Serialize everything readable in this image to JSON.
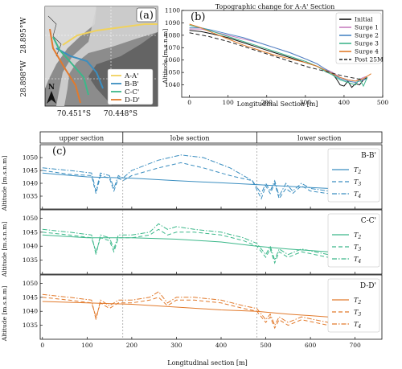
{
  "colors": {
    "section_aa": "#f0d25e",
    "section_bb": "#3b8ec0",
    "section_cc": "#3cb88a",
    "section_dd": "#e27a2c",
    "initial": "#111111",
    "surge1": "#c77fc0",
    "surge2": "#4a86c5",
    "surge3": "#3fb58c",
    "surge4": "#e07b2a",
    "post25m": "#222222"
  },
  "map_panel": {
    "label": "(a)",
    "lat_labels": [
      "28.895°W",
      "28.898°W"
    ],
    "lon_labels": [
      "70.451°S",
      "70.448°S"
    ],
    "north_label": "N",
    "legend": [
      "A-A'",
      "B-B'",
      "C-C'",
      "D-D'"
    ]
  },
  "chart_data": [
    {
      "id": "b",
      "type": "line",
      "panel_label": "(b)",
      "title": "Topographic change for A-A' Section",
      "xlabel": "Longitudinal Section [m]",
      "ylabel": "Altitude [m.s.n.m]",
      "xlim": [
        -20,
        500
      ],
      "ylim": [
        1030,
        1100
      ],
      "xticks": [
        0,
        100,
        200,
        300,
        400,
        500
      ],
      "yticks": [
        1040,
        1050,
        1060,
        1070,
        1080,
        1090,
        1100
      ],
      "legend_position": "top-right",
      "series": [
        {
          "name": "Initial",
          "style": "solid",
          "x": [
            0,
            30,
            60,
            100,
            140,
            180,
            220,
            260,
            300,
            330,
            350,
            370,
            380,
            390,
            400,
            410,
            420,
            430,
            440,
            450,
            460
          ],
          "y": [
            1084,
            1083,
            1081,
            1078,
            1074,
            1070,
            1066,
            1062,
            1058,
            1055,
            1052,
            1049,
            1045,
            1040,
            1039,
            1043,
            1038,
            1041,
            1040,
            1044,
            1046
          ]
        },
        {
          "name": "Surge 1",
          "style": "solid",
          "x": [
            0,
            30,
            60,
            100,
            140,
            180,
            220,
            260,
            300,
            330,
            350,
            370,
            390,
            410,
            430,
            450,
            460
          ],
          "y": [
            1085,
            1085,
            1083,
            1080,
            1077,
            1074,
            1070,
            1066,
            1061,
            1057,
            1053,
            1050,
            1046,
            1044,
            1043,
            1046,
            1047
          ]
        },
        {
          "name": "Surge 2",
          "style": "solid",
          "x": [
            0,
            30,
            60,
            100,
            140,
            180,
            220,
            260,
            300,
            330,
            350,
            370,
            390,
            410,
            430,
            450,
            460
          ],
          "y": [
            1086,
            1086,
            1084,
            1081,
            1078,
            1074,
            1070,
            1066,
            1061,
            1057,
            1053,
            1049,
            1045,
            1043,
            1042,
            1044,
            1045
          ]
        },
        {
          "name": "Surge 3",
          "style": "solid",
          "x": [
            0,
            30,
            60,
            100,
            140,
            180,
            220,
            260,
            300,
            330,
            350,
            370,
            390,
            410,
            430,
            440,
            450,
            460
          ],
          "y": [
            1088,
            1086,
            1083,
            1079,
            1075,
            1071,
            1067,
            1063,
            1059,
            1055,
            1051,
            1048,
            1044,
            1042,
            1040,
            1045,
            1039,
            1046
          ]
        },
        {
          "name": "Surge 4",
          "style": "solid",
          "x": [
            0,
            30,
            60,
            100,
            140,
            180,
            220,
            260,
            300,
            330,
            350,
            370,
            390,
            410,
            430,
            450,
            470
          ],
          "y": [
            1089,
            1086,
            1082,
            1077,
            1072,
            1068,
            1064,
            1061,
            1058,
            1055,
            1052,
            1049,
            1046,
            1044,
            1043,
            1045,
            1049
          ]
        },
        {
          "name": "Post 25M",
          "style": "dashed",
          "x": [
            0,
            50,
            100,
            150,
            200,
            250,
            300,
            350,
            400,
            450
          ],
          "y": [
            1082,
            1079,
            1075,
            1070,
            1065,
            1060,
            1055,
            1051,
            1047,
            1044
          ]
        }
      ]
    },
    {
      "id": "c",
      "type": "line",
      "panel_label": "(c)",
      "section_labels": [
        "upper section",
        "lobe section",
        "lower section"
      ],
      "section_bounds": [
        180,
        480
      ],
      "xlabel": "Longitudinal section [m]",
      "ylabel": "Altitude [m.s.n.m]",
      "xlim": [
        -5,
        760
      ],
      "xticks": [
        0,
        100,
        200,
        300,
        400,
        500,
        600,
        700
      ],
      "subplots": [
        {
          "name": "B-B'",
          "ylim": [
            1030,
            1055
          ],
          "yticks": [
            1035,
            1040,
            1045,
            1050
          ],
          "series": [
            {
              "name": "T2",
              "style": "solid",
              "x": [
                0,
                100,
                200,
                300,
                400,
                480,
                550,
                640
              ],
              "y": [
                1044,
                1042.5,
                1042,
                1041,
                1040.2,
                1039.5,
                1038.8,
                1038
              ]
            },
            {
              "name": "T3",
              "style": "dashed",
              "x": [
                0,
                60,
                110,
                120,
                130,
                150,
                160,
                170,
                180,
                200,
                260,
                310,
                360,
                420,
                470,
                490,
                500,
                510,
                520,
                530,
                545,
                560,
                580,
                600,
                640
              ],
              "y": [
                1045,
                1043.5,
                1043,
                1036,
                1043,
                1042,
                1037,
                1042,
                1041,
                1043,
                1046,
                1048,
                1046,
                1043,
                1041,
                1034,
                1039,
                1036,
                1040,
                1034,
                1038,
                1036,
                1039,
                1037,
                1036
              ]
            },
            {
              "name": "T4",
              "style": "dashdot",
              "x": [
                0,
                60,
                110,
                120,
                130,
                150,
                160,
                170,
                180,
                200,
                260,
                310,
                360,
                420,
                470,
                490,
                500,
                510,
                520,
                530,
                545,
                560,
                580,
                600,
                640
              ],
              "y": [
                1046,
                1045,
                1044,
                1037,
                1044,
                1043,
                1038,
                1043,
                1042,
                1045,
                1049,
                1051,
                1050,
                1046,
                1041,
                1036,
                1040,
                1037,
                1041,
                1035,
                1040,
                1037,
                1040,
                1038,
                1037
              ]
            }
          ]
        },
        {
          "name": "C-C'",
          "ylim": [
            1030,
            1053
          ],
          "yticks": [
            1035,
            1040,
            1045,
            1050
          ],
          "series": [
            {
              "name": "T2",
              "style": "solid",
              "x": [
                0,
                100,
                200,
                300,
                400,
                480,
                550,
                640
              ],
              "y": [
                1044,
                1043,
                1043,
                1042.5,
                1041.5,
                1040,
                1039,
                1038
              ]
            },
            {
              "name": "T3",
              "style": "dashed",
              "x": [
                0,
                60,
                110,
                120,
                130,
                150,
                160,
                170,
                200,
                240,
                260,
                280,
                300,
                340,
                400,
                450,
                480,
                500,
                510,
                520,
                530,
                550,
                580,
                610,
                640
              ],
              "y": [
                1045,
                1044,
                1043,
                1038,
                1043,
                1042,
                1038,
                1043,
                1043,
                1044,
                1046,
                1044,
                1045,
                1045,
                1044,
                1042,
                1040,
                1036,
                1039,
                1034,
                1038,
                1036,
                1038,
                1037,
                1036
              ]
            },
            {
              "name": "T4",
              "style": "dashdot",
              "x": [
                0,
                60,
                110,
                120,
                130,
                150,
                160,
                170,
                200,
                240,
                260,
                280,
                300,
                340,
                400,
                450,
                480,
                500,
                510,
                520,
                530,
                550,
                580,
                610,
                640
              ],
              "y": [
                1046,
                1045,
                1044,
                1037,
                1044,
                1043,
                1039,
                1044,
                1044,
                1045,
                1048,
                1046,
                1047,
                1046,
                1045,
                1043,
                1041,
                1037,
                1040,
                1035,
                1039,
                1037,
                1039,
                1038,
                1037
              ]
            }
          ]
        },
        {
          "name": "D-D'",
          "ylim": [
            1030,
            1053
          ],
          "yticks": [
            1035,
            1040,
            1045,
            1050
          ],
          "series": [
            {
              "name": "T2",
              "style": "solid",
              "x": [
                0,
                100,
                200,
                300,
                400,
                480,
                550,
                640
              ],
              "y": [
                1043.5,
                1043,
                1042.5,
                1041.5,
                1040.5,
                1040,
                1039,
                1038
              ]
            },
            {
              "name": "T3",
              "style": "dashed",
              "x": [
                0,
                60,
                110,
                120,
                130,
                150,
                170,
                200,
                240,
                260,
                280,
                300,
                340,
                400,
                450,
                480,
                500,
                510,
                520,
                530,
                550,
                580,
                610,
                640
              ],
              "y": [
                1045,
                1044,
                1043,
                1038,
                1043,
                1041,
                1043,
                1043,
                1044,
                1045,
                1042,
                1044,
                1044,
                1043,
                1041,
                1040,
                1036,
                1038,
                1034,
                1037,
                1035,
                1037,
                1036,
                1035
              ]
            },
            {
              "name": "T4",
              "style": "dashdot",
              "x": [
                0,
                60,
                110,
                120,
                130,
                150,
                170,
                200,
                240,
                260,
                280,
                300,
                340,
                400,
                450,
                480,
                500,
                510,
                520,
                530,
                550,
                580,
                610,
                640
              ],
              "y": [
                1046,
                1045,
                1044,
                1037,
                1044,
                1042,
                1044,
                1044,
                1045,
                1047,
                1043,
                1045,
                1045,
                1044,
                1042,
                1041,
                1037,
                1039,
                1035,
                1038,
                1036,
                1038,
                1037,
                1036
              ]
            }
          ]
        }
      ]
    }
  ]
}
